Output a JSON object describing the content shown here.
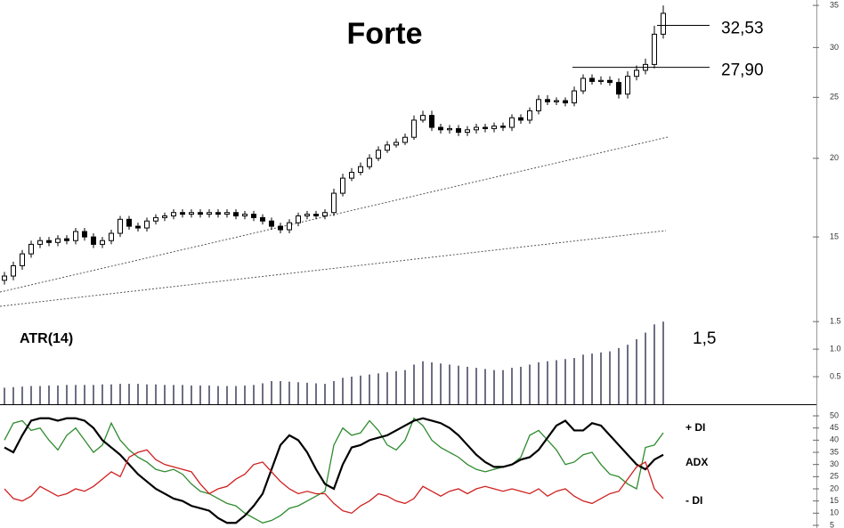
{
  "chart_data": [
    {
      "type": "candlestick",
      "title": "Forte",
      "log_scale": true,
      "color": "#000000",
      "ylim": [
        11.6,
        35.7
      ],
      "yticks": [
        15,
        20,
        25,
        30,
        35
      ],
      "open": [
        12.8,
        13.0,
        13.5,
        14.1,
        14.6,
        14.8,
        14.7,
        14.9,
        14.8,
        15.3,
        15.0,
        14.6,
        14.8,
        15.2,
        16.0,
        15.6,
        15.5,
        15.9,
        16.1,
        16.2,
        16.4,
        16.3,
        16.4,
        16.3,
        16.4,
        16.3,
        16.4,
        16.2,
        16.3,
        16.1,
        15.9,
        15.6,
        15.4,
        15.8,
        16.2,
        16.3,
        16.2,
        16.4,
        17.6,
        18.6,
        19.0,
        19.4,
        20.0,
        20.6,
        21.0,
        21.2,
        21.6,
        23.0,
        23.4,
        22.4,
        22.2,
        22.3,
        22.0,
        22.2,
        22.4,
        22.3,
        22.5,
        22.4,
        23.2,
        23.0,
        23.8,
        24.8,
        24.6,
        24.7,
        24.5,
        25.6,
        26.8,
        26.5,
        26.6,
        26.4,
        25.3,
        27.0,
        27.6,
        28.2,
        31.5
      ],
      "high": [
        13.2,
        13.7,
        14.3,
        14.8,
        15.0,
        15.0,
        15.1,
        15.1,
        15.5,
        15.5,
        15.2,
        15.0,
        15.4,
        16.2,
        16.2,
        15.8,
        16.1,
        16.3,
        16.4,
        16.6,
        16.6,
        16.6,
        16.6,
        16.6,
        16.6,
        16.6,
        16.6,
        16.5,
        16.5,
        16.3,
        16.1,
        15.8,
        16.0,
        16.4,
        16.5,
        16.5,
        16.6,
        17.9,
        18.9,
        19.3,
        19.7,
        20.3,
        20.9,
        21.3,
        21.5,
        21.9,
        23.4,
        23.8,
        23.8,
        22.7,
        22.6,
        22.6,
        22.5,
        22.7,
        22.7,
        22.8,
        22.8,
        23.5,
        23.5,
        24.1,
        25.2,
        25.2,
        25.0,
        25.0,
        26.0,
        27.2,
        27.2,
        27.0,
        27.0,
        26.8,
        27.5,
        28.1,
        28.8,
        32.5,
        35.0
      ],
      "low": [
        12.6,
        12.8,
        13.3,
        13.9,
        14.4,
        14.5,
        14.5,
        14.6,
        14.6,
        14.8,
        14.4,
        14.4,
        14.6,
        15.0,
        15.4,
        15.3,
        15.3,
        15.7,
        15.9,
        16.0,
        16.1,
        16.1,
        16.1,
        16.1,
        16.1,
        16.1,
        16.0,
        16.0,
        15.9,
        15.7,
        15.4,
        15.2,
        15.2,
        15.6,
        16.0,
        16.0,
        16.0,
        16.2,
        17.4,
        18.4,
        18.8,
        19.2,
        19.8,
        20.4,
        20.8,
        21.0,
        21.4,
        22.8,
        22.1,
        21.9,
        21.9,
        21.7,
        21.7,
        21.9,
        22.0,
        22.0,
        22.1,
        22.1,
        22.7,
        22.7,
        23.5,
        24.3,
        24.3,
        24.2,
        24.2,
        25.3,
        26.2,
        26.2,
        26.1,
        24.9,
        24.9,
        26.6,
        27.2,
        27.8,
        31.0
      ],
      "close": [
        13.0,
        13.5,
        14.1,
        14.6,
        14.8,
        14.7,
        14.9,
        14.8,
        15.3,
        15.0,
        14.6,
        14.8,
        15.2,
        16.0,
        15.6,
        15.5,
        15.9,
        16.1,
        16.2,
        16.4,
        16.3,
        16.4,
        16.3,
        16.4,
        16.3,
        16.4,
        16.2,
        16.3,
        16.1,
        15.9,
        15.6,
        15.4,
        15.8,
        16.2,
        16.3,
        16.2,
        16.4,
        17.6,
        18.6,
        19.0,
        19.4,
        20.0,
        20.6,
        21.0,
        21.2,
        21.6,
        23.0,
        23.4,
        22.4,
        22.2,
        22.3,
        22.0,
        22.2,
        22.4,
        22.3,
        22.5,
        22.4,
        23.2,
        23.0,
        23.8,
        24.8,
        24.6,
        24.7,
        24.5,
        25.6,
        26.8,
        26.5,
        26.6,
        26.4,
        25.3,
        27.0,
        27.6,
        28.2,
        31.5,
        34.0
      ],
      "annotations": [
        {
          "value": 32.53,
          "label": "32,53"
        },
        {
          "value": 27.9,
          "label": "27,90"
        }
      ]
    },
    {
      "type": "bar",
      "title": "ATR(14)",
      "color": "#4a4a66",
      "ylim": [
        0,
        1.6
      ],
      "yticks": [
        0.5,
        {
          "value": 1,
          "label": "1.0"
        },
        1.5
      ],
      "values": [
        0.3,
        0.31,
        0.32,
        0.33,
        0.33,
        0.34,
        0.34,
        0.35,
        0.35,
        0.35,
        0.35,
        0.36,
        0.36,
        0.37,
        0.37,
        0.37,
        0.36,
        0.36,
        0.35,
        0.35,
        0.35,
        0.34,
        0.34,
        0.34,
        0.33,
        0.33,
        0.33,
        0.34,
        0.35,
        0.38,
        0.42,
        0.42,
        0.41,
        0.4,
        0.39,
        0.38,
        0.37,
        0.42,
        0.48,
        0.5,
        0.52,
        0.54,
        0.56,
        0.58,
        0.6,
        0.62,
        0.72,
        0.78,
        0.76,
        0.74,
        0.72,
        0.7,
        0.68,
        0.66,
        0.64,
        0.62,
        0.62,
        0.66,
        0.68,
        0.72,
        0.76,
        0.78,
        0.8,
        0.82,
        0.84,
        0.9,
        0.92,
        0.94,
        0.96,
        1.02,
        1.08,
        1.18,
        1.3,
        1.45,
        1.5
      ],
      "annotations": [
        {
          "value": 1.5,
          "label": "1,5"
        }
      ]
    },
    {
      "type": "line",
      "ylim": [
        3.9,
        54.4
      ],
      "yticks": [
        5,
        10,
        15,
        20,
        25,
        30,
        35,
        40,
        45,
        50
      ],
      "series": [
        {
          "name": "+ DI",
          "color": "#2e8b2e",
          "values": [
            40,
            47,
            48,
            44,
            45,
            40,
            36,
            42,
            45,
            40,
            35,
            38,
            47,
            40,
            36,
            33,
            31,
            28,
            27,
            28,
            26,
            22,
            19,
            18,
            16,
            14,
            13,
            10,
            8,
            6,
            7,
            9,
            12,
            13,
            15,
            17,
            19,
            38,
            45,
            42,
            43,
            48,
            44,
            38,
            36,
            40,
            49,
            46,
            40,
            37,
            35,
            33,
            30,
            28,
            27,
            28,
            29,
            30,
            33,
            42,
            44,
            40,
            36,
            30,
            31,
            34,
            35,
            30,
            26,
            25,
            22,
            20,
            37,
            38,
            43
          ]
        },
        {
          "name": "ADX",
          "color": "#000000",
          "values": [
            37,
            35,
            42,
            48,
            49,
            49,
            48,
            49,
            49,
            48,
            45,
            40,
            37,
            34,
            30,
            26,
            23,
            20,
            18,
            16,
            15,
            13,
            12,
            11,
            8,
            6,
            6,
            9,
            13,
            18,
            28,
            38,
            42,
            40,
            35,
            28,
            22,
            20,
            30,
            37,
            38,
            40,
            41,
            42,
            44,
            46,
            48,
            49,
            48,
            47,
            45,
            42,
            38,
            34,
            31,
            29,
            29,
            30,
            32,
            33,
            36,
            41,
            46,
            48,
            44,
            44,
            47,
            46,
            42,
            38,
            34,
            30,
            28,
            32,
            34
          ]
        },
        {
          "name": "- DI",
          "color": "#d02020",
          "values": [
            20,
            16,
            15,
            17,
            21,
            19,
            17,
            18,
            20,
            19,
            21,
            24,
            27,
            25,
            33,
            35,
            36,
            32,
            30,
            29,
            28,
            27,
            22,
            18,
            20,
            21,
            24,
            26,
            30,
            31,
            27,
            23,
            20,
            18,
            19,
            18,
            18,
            14,
            11,
            10,
            13,
            15,
            18,
            17,
            15,
            14,
            16,
            21,
            19,
            17,
            19,
            20,
            18,
            20,
            21,
            20,
            19,
            20,
            19,
            18,
            20,
            17,
            19,
            20,
            17,
            15,
            14,
            16,
            18,
            19,
            24,
            29,
            31,
            20,
            16
          ]
        }
      ]
    }
  ]
}
